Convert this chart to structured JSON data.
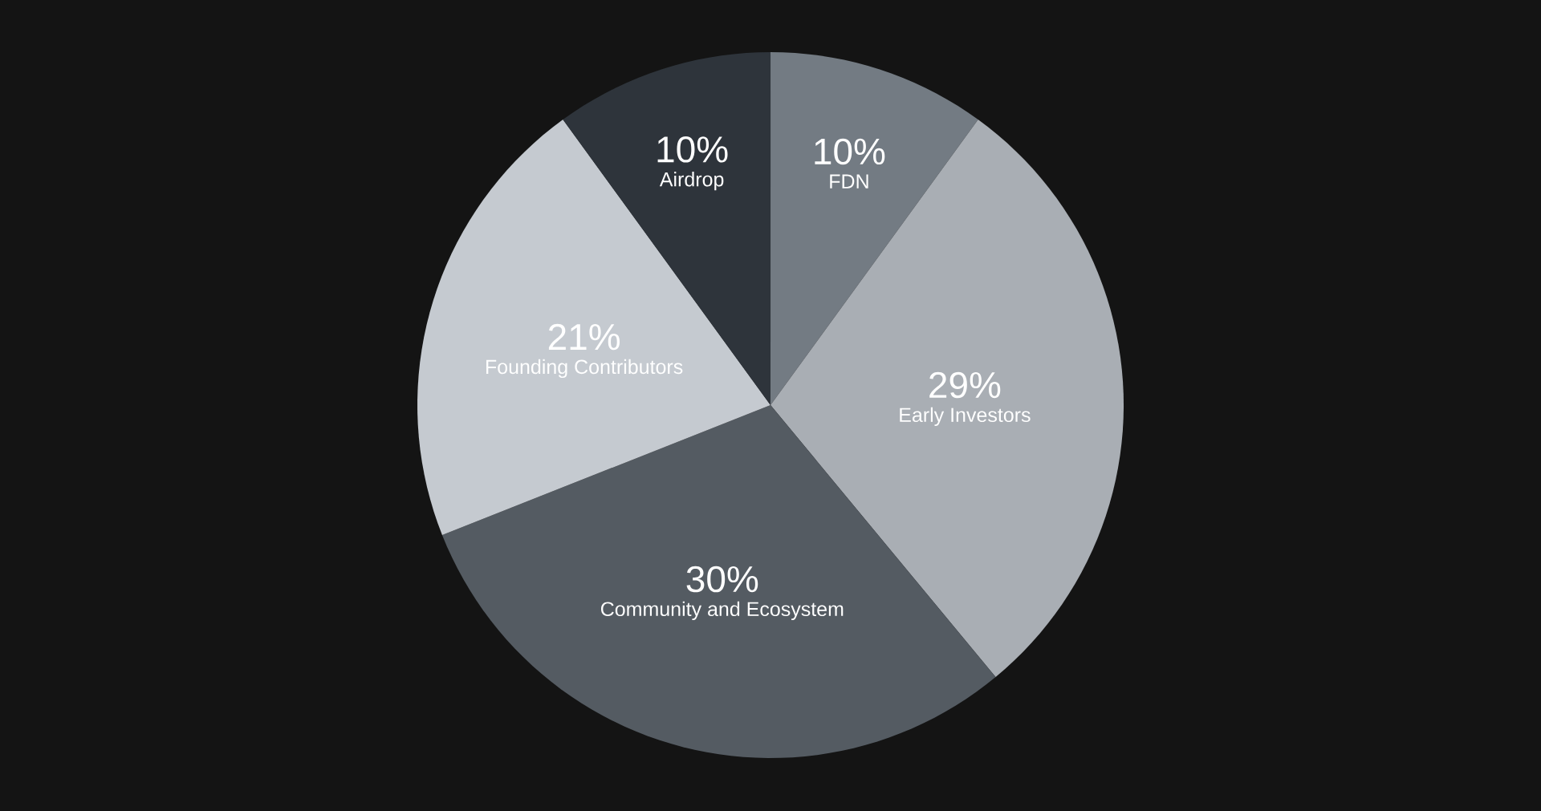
{
  "chart_data": {
    "type": "pie",
    "categories": [
      "FDN",
      "Early Investors",
      "Community and Ecosystem",
      "Founding Contributors",
      "Airdrop"
    ],
    "values": [
      10,
      29,
      30,
      21,
      10
    ],
    "value_labels": [
      "10%",
      "29%",
      "30%",
      "21%",
      "10%"
    ],
    "colors": [
      "#737b83",
      "#a9aeb4",
      "#545b62",
      "#c5cad0",
      "#2e343b"
    ]
  }
}
